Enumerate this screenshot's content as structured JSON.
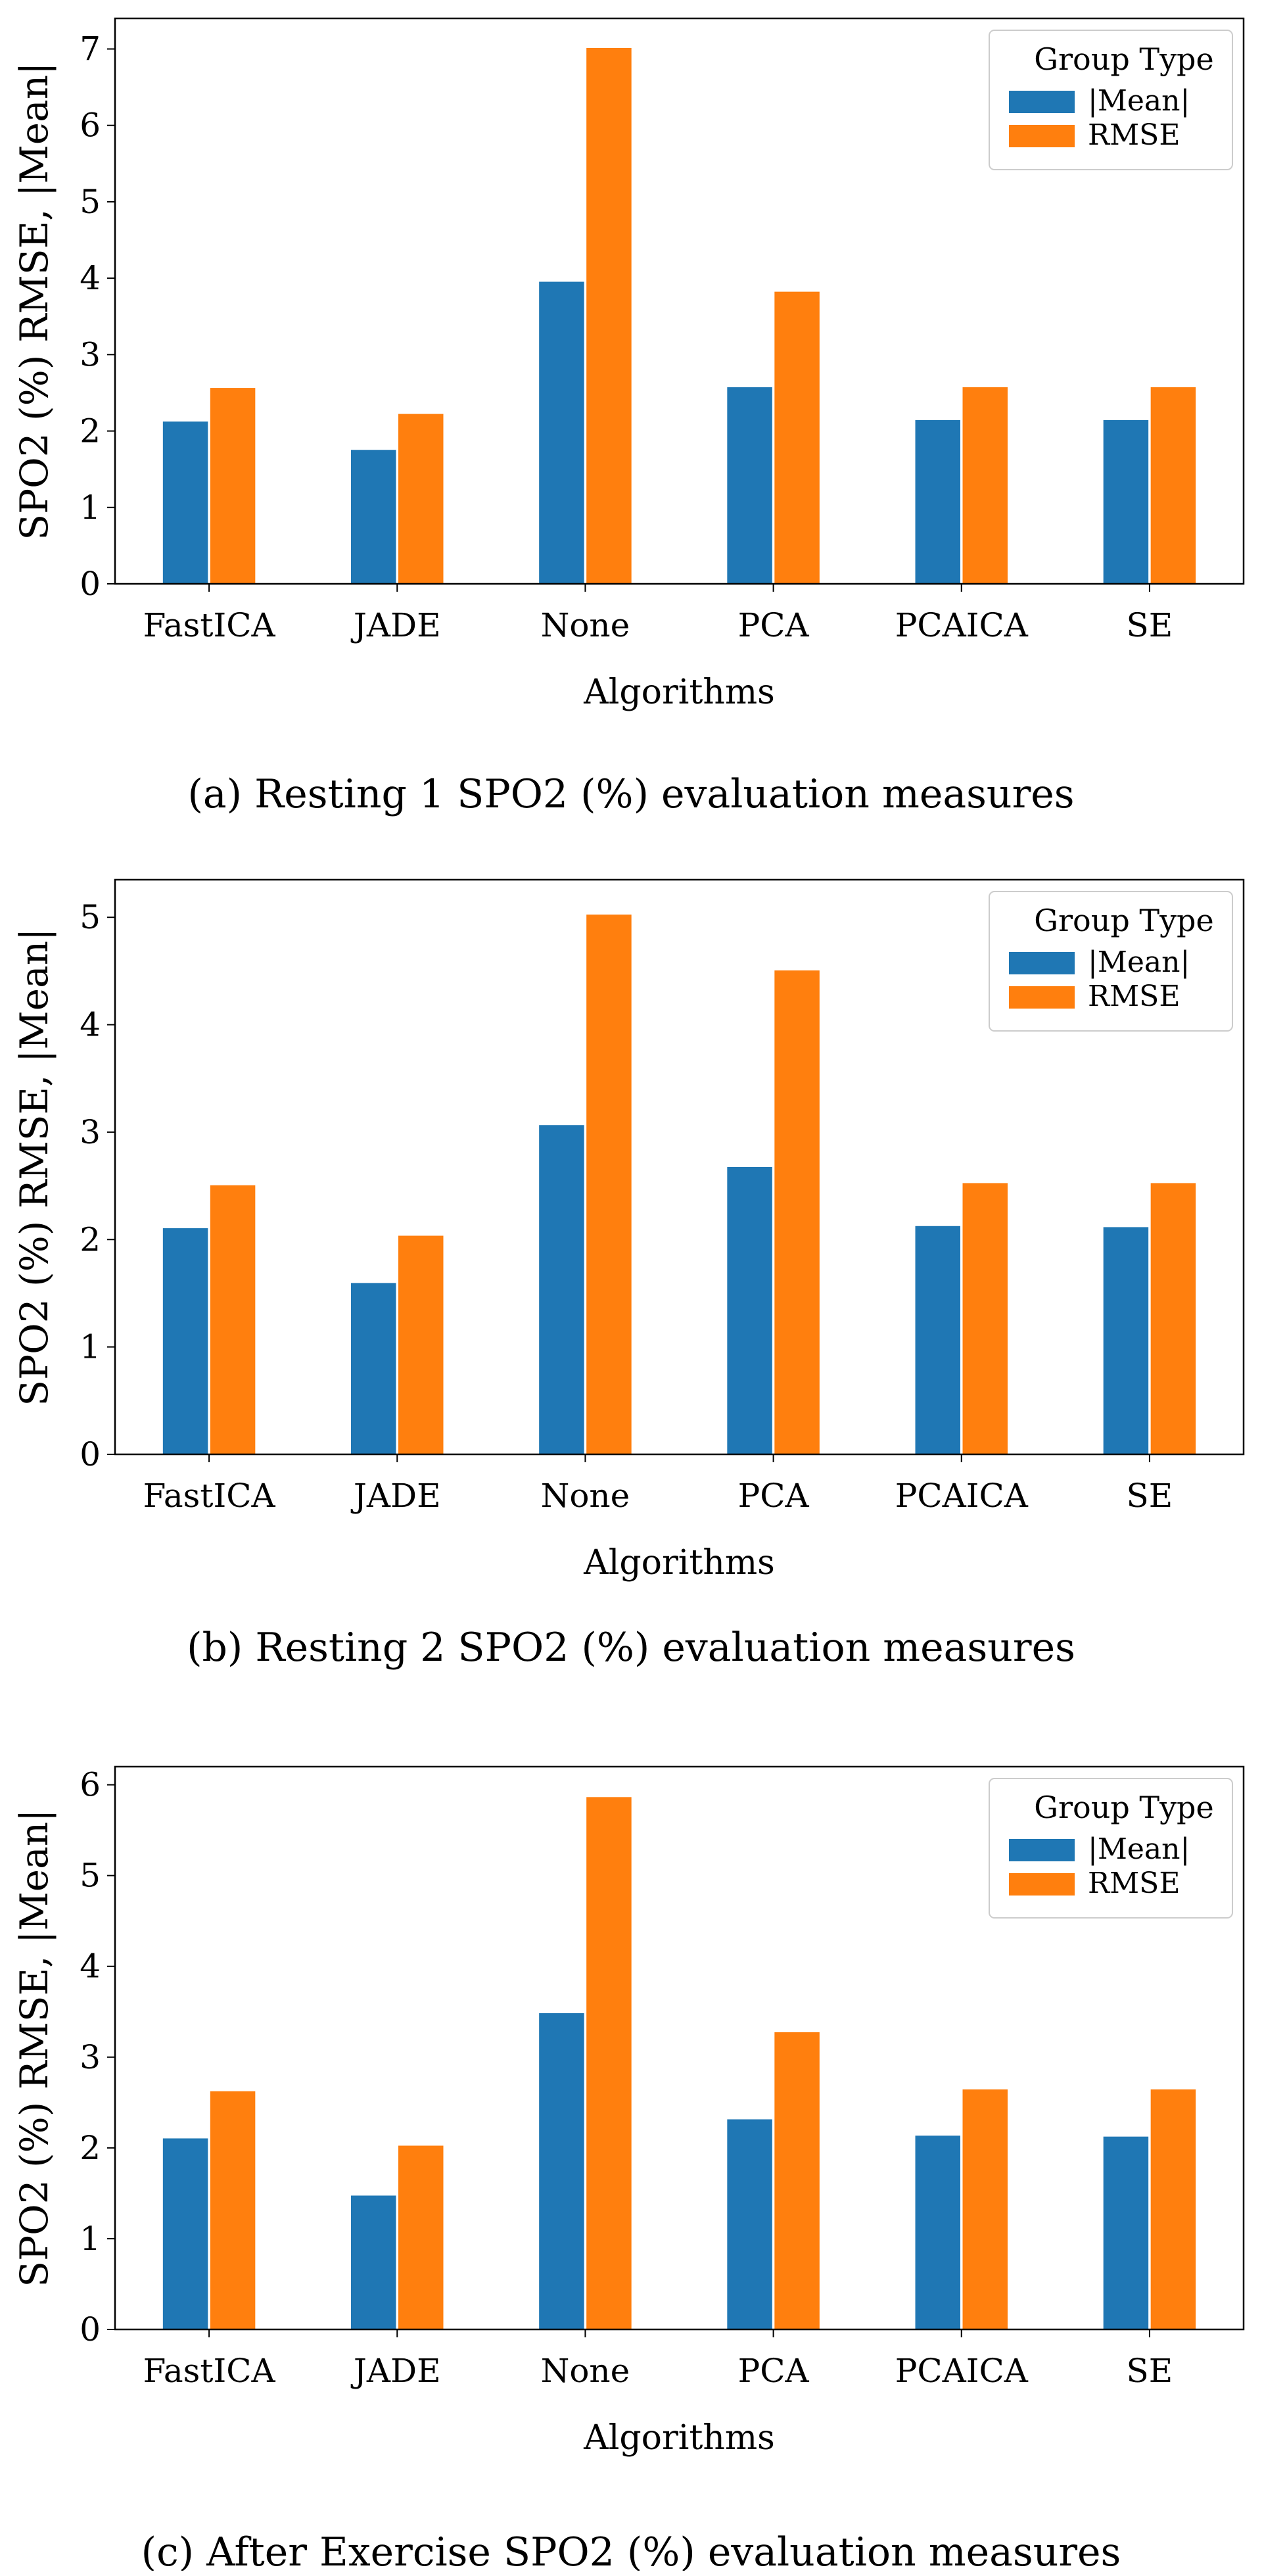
{
  "legend_title": "Group Type",
  "colors": {
    "mean": "#1f77b4",
    "rmse": "#ff7f0e"
  },
  "chart_data": [
    {
      "type": "bar",
      "caption": "(a) Resting 1 SPO2 (%) evaluation measures",
      "xlabel": "Algorithms",
      "ylabel": "SPO2 (%) RMSE, |Mean|",
      "ylim": [
        0,
        7.4
      ],
      "yticks": [
        0,
        1,
        2,
        3,
        4,
        5,
        6,
        7
      ],
      "categories": [
        "FastICA",
        "JADE",
        "None",
        "PCA",
        "PCAICA",
        "SE"
      ],
      "series": [
        {
          "name": "|Mean|",
          "values": [
            2.13,
            1.76,
            3.96,
            2.58,
            2.15,
            2.15
          ]
        },
        {
          "name": "RMSE",
          "values": [
            2.57,
            2.23,
            7.02,
            3.83,
            2.58,
            2.58
          ]
        }
      ]
    },
    {
      "type": "bar",
      "caption": "(b) Resting 2 SPO2 (%) evaluation measures",
      "xlabel": "Algorithms",
      "ylabel": "SPO2 (%) RMSE, |Mean|",
      "ylim": [
        0,
        5.35
      ],
      "yticks": [
        0,
        1,
        2,
        3,
        4,
        5
      ],
      "categories": [
        "FastICA",
        "JADE",
        "None",
        "PCA",
        "PCAICA",
        "SE"
      ],
      "series": [
        {
          "name": "|Mean|",
          "values": [
            2.11,
            1.6,
            3.07,
            2.68,
            2.13,
            2.12
          ]
        },
        {
          "name": "RMSE",
          "values": [
            2.51,
            2.04,
            5.03,
            4.51,
            2.53,
            2.53
          ]
        }
      ]
    },
    {
      "type": "bar",
      "caption": "(c) After Exercise SPO2 (%) evaluation measures",
      "xlabel": "Algorithms",
      "ylabel": "SPO2 (%) RMSE, |Mean|",
      "ylim": [
        0,
        6.2
      ],
      "yticks": [
        0,
        1,
        2,
        3,
        4,
        5,
        6
      ],
      "categories": [
        "FastICA",
        "JADE",
        "None",
        "PCA",
        "PCAICA",
        "SE"
      ],
      "series": [
        {
          "name": "|Mean|",
          "values": [
            2.11,
            1.48,
            3.49,
            2.32,
            2.14,
            2.13
          ]
        },
        {
          "name": "RMSE",
          "values": [
            2.63,
            2.03,
            5.87,
            3.28,
            2.65,
            2.65
          ]
        }
      ]
    }
  ]
}
